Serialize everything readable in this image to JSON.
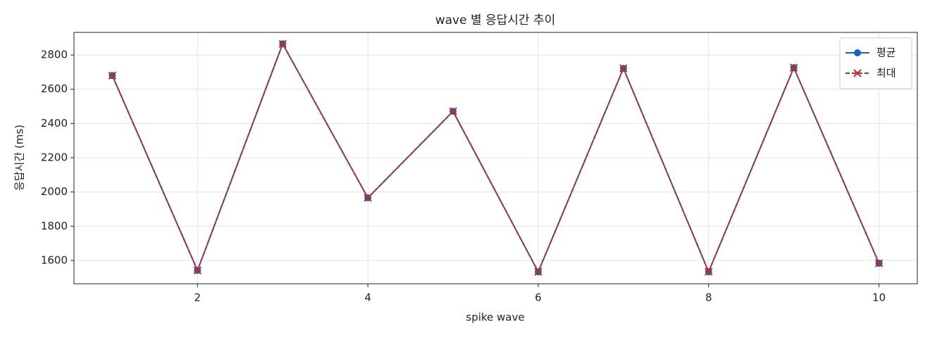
{
  "chart_data": {
    "type": "line",
    "title": "wave 별 응답시간 추이",
    "xlabel": "spike wave",
    "ylabel": "응답시간 (ms)",
    "x": [
      1,
      2,
      3,
      4,
      5,
      6,
      7,
      8,
      9,
      10
    ],
    "series": [
      {
        "name": "평균",
        "color": "#1565c0",
        "marker": "o",
        "dash": false,
        "values": [
          2680,
          1542,
          2865,
          1966,
          2471,
          1534,
          2722,
          1534,
          2726,
          1584
        ]
      },
      {
        "name": "최대",
        "color": "#c62828",
        "marker": "x",
        "dash": true,
        "values": [
          2680,
          1542,
          2865,
          1966,
          2471,
          1534,
          2722,
          1534,
          2726,
          1584
        ]
      }
    ],
    "xlim": [
      0.55,
      10.45
    ],
    "xticks": [
      2,
      4,
      6,
      8,
      10
    ],
    "ylim": [
      1464,
      2932
    ],
    "yticks": [
      1600,
      1800,
      2000,
      2200,
      2400,
      2600,
      2800
    ],
    "grid": true,
    "legend": "upper right"
  }
}
